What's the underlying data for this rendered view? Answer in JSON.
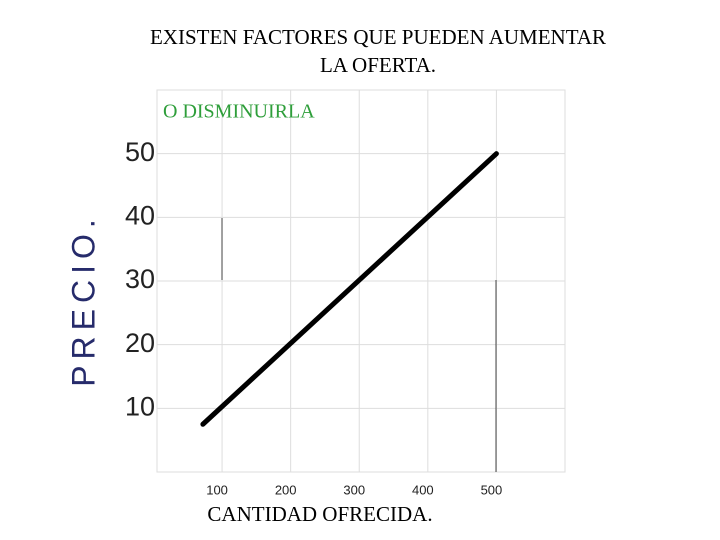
{
  "chart_data": {
    "type": "line",
    "title": [
      "EXISTEN FACTORES QUE PUEDEN AUMENTAR",
      "LA OFERTA."
    ],
    "subtitle": "O DISMINUIRLA",
    "x_label": "CANTIDAD OFRECIDA.",
    "y_label": "PRECIO.",
    "series": [
      {
        "color": "#000000",
        "x": [
          72,
          500
        ],
        "values": [
          7.5,
          50
        ]
      }
    ],
    "xlim": [
      0,
      600
    ],
    "xticks": [
      100,
      200,
      300,
      400,
      500
    ],
    "ylim": [
      0,
      60
    ],
    "yticks": [
      10,
      20,
      30,
      40,
      50
    ],
    "grid": true
  }
}
